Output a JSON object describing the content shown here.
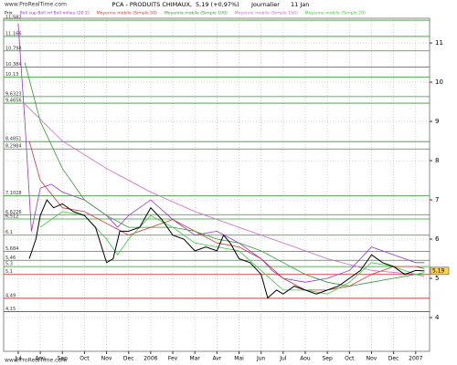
{
  "chart_data": {
    "type": "line",
    "source": "www.ProRealTime.com",
    "title": "PCA - PRODUITS CHIMAUX,",
    "subtitle": "5,19 (+0,97%)",
    "period": "Journalier",
    "date": "11 Jan",
    "last_price": {
      "value": 5.19,
      "label": "5,19"
    },
    "xlim": [
      -0.66,
      18.63
    ],
    "xticks": [
      {
        "value": 0,
        "label": "Jul"
      },
      {
        "value": 1,
        "label": "Aou"
      },
      {
        "value": 2,
        "label": "Sep"
      },
      {
        "value": 3,
        "label": "Oct"
      },
      {
        "value": 4,
        "label": "Nov"
      },
      {
        "value": 5,
        "label": "Dec"
      },
      {
        "value": 6,
        "label": "2006"
      },
      {
        "value": 7,
        "label": "Fev"
      },
      {
        "value": 8,
        "label": "Mar"
      },
      {
        "value": 9,
        "label": "Avr"
      },
      {
        "value": 10,
        "label": "Mai"
      },
      {
        "value": 11,
        "label": "Jun"
      },
      {
        "value": 12,
        "label": "Jul"
      },
      {
        "value": 13,
        "label": "Aou"
      },
      {
        "value": 14,
        "label": "Sep"
      },
      {
        "value": 15,
        "label": "Oct"
      },
      {
        "value": 16,
        "label": "Nov"
      },
      {
        "value": 17,
        "label": "Dec"
      },
      {
        "value": 18,
        "label": "2007"
      }
    ],
    "ylim": [
      3.14,
      11.63
    ],
    "yticks": [
      4,
      5,
      6,
      7,
      8,
      9,
      10,
      11
    ],
    "grid": true,
    "levels": [
      {
        "value": 11.582,
        "label": "11,582"
      },
      {
        "value": 11.166,
        "label": "11,166"
      },
      {
        "value": 10.798,
        "label": "10,798"
      },
      {
        "value": 10.384,
        "label": "10,384"
      },
      {
        "value": 10.13,
        "label": "10,13"
      },
      {
        "value": 9.6323,
        "label": "9,6323"
      },
      {
        "value": 9.4656,
        "label": "9,4656"
      },
      {
        "value": 8.4851,
        "label": "8,4851"
      },
      {
        "value": 8.2984,
        "label": "8,2984"
      },
      {
        "value": 7.1028,
        "label": "7,1028"
      },
      {
        "value": 6.6226,
        "label": "6,6226"
      },
      {
        "value": 6.512,
        "label": "6,512"
      },
      {
        "value": 6.1,
        "label": "6,1"
      },
      {
        "value": 5.684,
        "label": "5,684"
      },
      {
        "value": 5.46,
        "label": "5,46"
      },
      {
        "value": 5.3,
        "label": "5,3"
      },
      {
        "value": 5.1,
        "label": "5,1"
      },
      {
        "value": 4.49,
        "label": "4,49"
      },
      {
        "value": 4.15,
        "label": "4,15"
      }
    ],
    "series": [
      {
        "name": "Prix",
        "color": "#000000",
        "x": [
          0.5,
          0.8,
          1,
          1.3,
          1.6,
          2,
          2.5,
          3,
          3.5,
          4,
          4.3,
          4.6,
          5,
          5.5,
          6,
          6.5,
          7,
          7.5,
          8,
          8.5,
          9,
          9.3,
          9.6,
          10,
          10.5,
          11,
          11.3,
          11.7,
          12,
          12.5,
          13,
          13.5,
          14,
          14.5,
          15,
          15.5,
          16,
          16.5,
          17,
          17.5,
          18,
          18.4
        ],
        "values": [
          5.5,
          6.0,
          6.6,
          7.0,
          6.8,
          6.9,
          6.7,
          6.6,
          6.3,
          5.4,
          5.5,
          6.2,
          6.2,
          6.3,
          6.8,
          6.5,
          6.1,
          6.0,
          5.7,
          5.8,
          5.7,
          6.1,
          5.9,
          5.5,
          5.4,
          5.1,
          4.5,
          4.7,
          4.6,
          4.8,
          4.7,
          4.6,
          4.7,
          4.8,
          5.0,
          5.2,
          5.6,
          5.4,
          5.3,
          5.1,
          5.2,
          5.19
        ]
      },
      {
        "name": "Boll sup Boll inf Boll milieu (20 2)",
        "color": "#9933cc",
        "x": [
          0,
          0.3,
          0.6,
          1,
          1.5,
          2,
          3,
          4,
          4.5,
          5,
          6,
          7,
          8,
          9,
          10,
          11,
          11.5,
          12,
          13,
          14,
          15,
          16,
          17,
          18,
          18.4
        ],
        "values": [
          11.5,
          9,
          6.2,
          7.3,
          7.4,
          7.2,
          7,
          6.6,
          6.3,
          6.6,
          7,
          6.5,
          6.1,
          6.2,
          5.9,
          5.5,
          5.2,
          5,
          4.9,
          5,
          5.2,
          5.8,
          5.6,
          5.4,
          5.4
        ]
      },
      {
        "name": "Moyenne mobile (Simple 50)",
        "color": "#cc3333",
        "x": [
          0.5,
          1,
          2,
          3,
          4,
          5,
          6,
          7,
          8,
          9,
          10,
          11,
          12,
          13,
          14,
          15,
          16,
          17,
          18,
          18.4
        ],
        "values": [
          8.5,
          7.5,
          6.8,
          6.7,
          6.4,
          6.1,
          6.3,
          6.5,
          6.2,
          5.9,
          5.8,
          5.5,
          5.0,
          4.7,
          4.7,
          4.8,
          5.1,
          5.3,
          5.3,
          5.25
        ]
      },
      {
        "name": "Moyenne mobile (Simple 100)",
        "color": "#339933",
        "x": [
          0.3,
          1,
          2,
          3,
          4,
          5,
          6,
          7,
          8,
          9,
          10,
          11,
          12,
          13,
          14,
          15,
          16,
          17,
          18,
          18.4
        ],
        "values": [
          10.5,
          9.0,
          7.8,
          7.0,
          6.6,
          6.3,
          6.3,
          6.3,
          6.2,
          6.0,
          5.9,
          5.7,
          5.4,
          5.1,
          4.9,
          4.8,
          4.9,
          5.0,
          5.1,
          5.1
        ]
      },
      {
        "name": "Moyenne mobile (Simple 150)",
        "color": "#cc66cc",
        "x": [
          0.2,
          2,
          4,
          6,
          8,
          10,
          12,
          14,
          16,
          18,
          18.4
        ],
        "values": [
          9.5,
          8.5,
          7.8,
          7.2,
          6.7,
          6.3,
          5.9,
          5.5,
          5.2,
          5.1,
          5.05
        ]
      },
      {
        "name": "Moyenne mobile (Simple 20)",
        "color": "#33cc33",
        "x": [
          1,
          2,
          3,
          4,
          4.5,
          5,
          6,
          7,
          8,
          9,
          10,
          11,
          12,
          13,
          14,
          15,
          16,
          17,
          18,
          18.4
        ],
        "values": [
          6.3,
          6.7,
          6.6,
          6.0,
          5.6,
          6.0,
          6.6,
          6.3,
          5.9,
          5.8,
          5.7,
          5.2,
          4.7,
          4.7,
          4.6,
          4.9,
          5.4,
          5.3,
          5.1,
          5.15
        ]
      }
    ]
  }
}
